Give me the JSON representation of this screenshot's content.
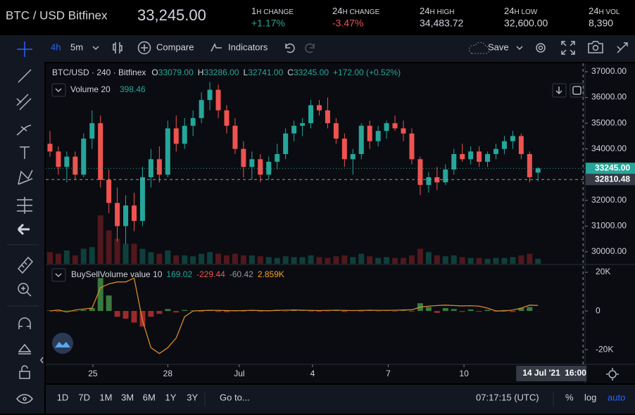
{
  "header": {
    "symbol": "BTC / USD Bitfinex",
    "price": "33,245.00",
    "stats": [
      {
        "num": "1",
        "label": "H CHANGE",
        "value": "+1.17%"
      },
      {
        "num": "24",
        "label": "H CHANGE",
        "value": "-3.47%"
      },
      {
        "num": "24",
        "label": "H HIGH",
        "value": "34,483.72"
      },
      {
        "num": "24",
        "label": "H LOW",
        "value": "32,600.00"
      },
      {
        "num": "24",
        "label": "H VOL",
        "value": "8,390"
      }
    ]
  },
  "toolbar": {
    "interval": "4h",
    "interval2": "5m",
    "compare": "Compare",
    "indicators": "Indicators",
    "save": "Save"
  },
  "chart_data": {
    "type": "candlestick",
    "legend": {
      "symbol": "BTC/USD · 240 · Bitfinex",
      "items": [
        {
          "key": "O",
          "value": "33079.00"
        },
        {
          "key": "H",
          "value": "33286.00"
        },
        {
          "key": "L",
          "value": "32741.00"
        },
        {
          "key": "C",
          "value": "33245.00"
        }
      ],
      "change": "+172.00 (+0.52%)",
      "volume_name": "Volume 20",
      "volume_value": "398.46"
    },
    "up_color": "#26a69a",
    "down_color": "#ef5350",
    "volume_up_color": "#0f3f3a",
    "volume_down_color": "#51181d",
    "xlim": [
      -0.5,
      63.5
    ],
    "xticks": [
      {
        "value": 5.1,
        "label": "25"
      },
      {
        "value": 14,
        "label": "28"
      },
      {
        "value": 22.5,
        "label": "Jul"
      },
      {
        "value": 31.2,
        "label": "4"
      },
      {
        "value": 40.2,
        "label": "7"
      },
      {
        "value": 49.2,
        "label": "10"
      }
    ],
    "ylim": [
      29535,
      37328
    ],
    "yticks": [
      {
        "value": 30000,
        "label": "30000.00"
      },
      {
        "value": 31000,
        "label": "31000.00"
      },
      {
        "value": 32000,
        "label": "32000.00"
      },
      {
        "value": 33000,
        "label": "33000.00"
      },
      {
        "value": 34000,
        "label": "34000.00"
      },
      {
        "value": 35000,
        "label": "35000.00"
      },
      {
        "value": 36000,
        "label": "36000.00"
      },
      {
        "value": 37000,
        "label": "37000.00"
      }
    ],
    "grid": false,
    "open": [
      34200,
      33900,
      33300,
      33700,
      33000,
      34400,
      35000,
      32800,
      31900,
      31000,
      31800,
      31200,
      32900,
      33600,
      33000,
      34800,
      34200,
      34900,
      35200,
      35900,
      36300,
      35500,
      34900,
      34000,
      33300,
      33600,
      33000,
      33500,
      33800,
      34600,
      34900,
      35000,
      35700,
      35500,
      35000,
      34400,
      33600,
      33800,
      34900,
      34300,
      34700,
      35000,
      34800,
      34600,
      33600,
      32600,
      32900,
      32700,
      33200,
      33800,
      33600,
      33900,
      33500,
      33800,
      34000,
      34300,
      34500,
      33800,
      33079
    ],
    "high": [
      34700,
      34100,
      33900,
      33900,
      34600,
      35500,
      35300,
      33200,
      32500,
      32200,
      32300,
      33300,
      34000,
      34100,
      35100,
      35300,
      35200,
      35500,
      36200,
      36600,
      36500,
      35700,
      35200,
      34300,
      33900,
      33800,
      33700,
      34200,
      34800,
      35100,
      35200,
      35900,
      35900,
      36000,
      35200,
      34600,
      34000,
      35000,
      35100,
      34900,
      35100,
      35300,
      35100,
      34800,
      33700,
      33100,
      33300,
      33400,
      34000,
      34200,
      34100,
      34100,
      33900,
      34200,
      34500,
      34700,
      34600,
      33900,
      33286
    ],
    "low": [
      33700,
      33000,
      32700,
      32800,
      32900,
      34000,
      32500,
      31500,
      30400,
      30300,
      30800,
      31000,
      32500,
      32700,
      32900,
      33900,
      34000,
      34500,
      35000,
      35500,
      35200,
      34600,
      33800,
      32900,
      32800,
      32700,
      32800,
      33200,
      33600,
      34300,
      34500,
      34800,
      35300,
      34800,
      34200,
      33300,
      33000,
      33600,
      34000,
      34100,
      34400,
      34700,
      34300,
      33400,
      32200,
      32300,
      32400,
      32600,
      33000,
      33500,
      33400,
      33300,
      33300,
      33600,
      33800,
      34000,
      33600,
      32700,
      32741
    ],
    "close": [
      33900,
      33300,
      33700,
      33000,
      34400,
      35000,
      32800,
      31900,
      31000,
      31800,
      31200,
      32900,
      33600,
      33000,
      34800,
      34200,
      34900,
      35200,
      35900,
      36300,
      35500,
      34900,
      34000,
      33300,
      33600,
      33000,
      33500,
      33800,
      34600,
      34900,
      35000,
      35700,
      35500,
      35000,
      34400,
      33600,
      33800,
      34900,
      34300,
      34700,
      35000,
      34800,
      34600,
      33600,
      32600,
      32900,
      32700,
      33200,
      33800,
      33600,
      33900,
      33500,
      33800,
      34000,
      34300,
      34500,
      33800,
      32900,
      33245
    ],
    "volume": [
      700,
      600,
      800,
      500,
      900,
      1000,
      2900,
      2000,
      1500,
      1200,
      1200,
      900,
      700,
      600,
      800,
      500,
      500,
      450,
      600,
      700,
      600,
      500,
      600,
      500,
      500,
      450,
      400,
      350,
      450,
      400,
      400,
      500,
      400,
      350,
      450,
      500,
      400,
      600,
      450,
      350,
      400,
      350,
      350,
      500,
      900,
      700,
      500,
      450,
      500,
      400,
      350,
      350,
      300,
      350,
      350,
      400,
      500,
      600,
      300
    ],
    "volume_ylim": [
      0,
      12000
    ],
    "last_price": {
      "value": 33245,
      "label": "33245.00",
      "color": "#26a69a"
    },
    "crosshair": {
      "x": 63.35,
      "price": {
        "value": 32810.48,
        "label": "32810.48"
      },
      "date": "14 Jul '21",
      "time": "16:00"
    },
    "indicator": {
      "name": "BuySellVolume value 10",
      "legend_values": [
        {
          "text": "169.02",
          "color": "#26a69a"
        },
        {
          "text": "-229.44",
          "color": "#ef5350"
        },
        {
          "text": "-60.42",
          "color": "#9598a1"
        },
        {
          "text": "2.859K",
          "color": "#f7a21b"
        }
      ],
      "ylim": [
        -27600,
        23300
      ],
      "yticks": [
        {
          "value": 20000,
          "label": "20K"
        },
        0,
        {
          "value": -20000,
          "label": "-20K"
        }
      ],
      "line_color": "#d9892a",
      "hist_up_color": "#3b7a3e",
      "hist_down_color": "#9c2a2c",
      "line": [
        0,
        500,
        -500,
        500,
        1000,
        1500,
        12000,
        14000,
        15000,
        15000,
        17000,
        -5000,
        -19000,
        -22000,
        -19000,
        -14000,
        -3000,
        0,
        200,
        300,
        300,
        200,
        100,
        200,
        300,
        200,
        100,
        300,
        400,
        500,
        400,
        300,
        200,
        300,
        400,
        300,
        200,
        300,
        400,
        300,
        300,
        400,
        500,
        600,
        2000,
        2500,
        2800,
        3000,
        2800,
        2600,
        2700,
        2500,
        1500,
        0,
        0,
        500,
        1500,
        3000,
        2859
      ],
      "histogram": [
        300,
        -400,
        200,
        -300,
        500,
        1500,
        17000,
        8000,
        -3000,
        -4000,
        -6000,
        -8000,
        -3000,
        -1500,
        1000,
        -800,
        500,
        300,
        -400,
        600,
        -500,
        -600,
        400,
        -300,
        500,
        -400,
        300,
        600,
        -200,
        400,
        500,
        -300,
        -400,
        -200,
        300,
        -500,
        400,
        -300,
        300,
        -200,
        400,
        -300,
        200,
        -400,
        4000,
        2000,
        -1000,
        1500,
        1000,
        -500,
        800,
        -400,
        600,
        -300,
        500,
        -600,
        1500,
        2000,
        -60.42
      ]
    }
  },
  "bottom_bar": {
    "ranges": [
      "1D",
      "7D",
      "1M",
      "3M",
      "6M",
      "1Y",
      "3Y"
    ],
    "goto": "Go to...",
    "clock": "07:17:15 (UTC)",
    "percent": "%",
    "log": "log",
    "auto": "auto"
  }
}
